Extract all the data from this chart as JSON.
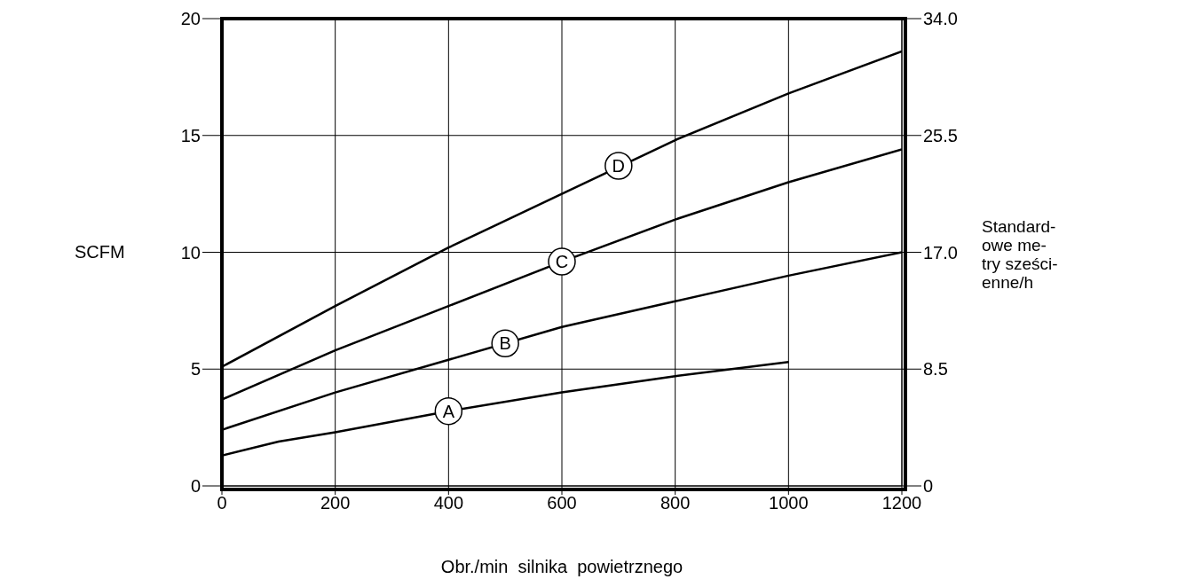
{
  "chart_data": {
    "type": "line",
    "xlabel": "Obr./min  silnika  powietrznego",
    "ylabel": "SCFM",
    "y2label": "Standard-\nowe me-\ntry sześci-\nenne/h",
    "x": [
      0,
      200,
      400,
      600,
      800,
      1000,
      1200
    ],
    "series": [
      {
        "color": "#000000",
        "x": [
          0,
          100,
          200,
          400,
          600,
          800,
          1000
        ],
        "values": [
          1.3,
          1.9,
          2.3,
          3.2,
          4.0,
          4.7,
          5.3
        ]
      },
      {
        "color": "#000000",
        "values": [
          2.4,
          4.0,
          5.4,
          6.8,
          7.9,
          9.0,
          10.0
        ]
      },
      {
        "color": "#000000",
        "values": [
          3.7,
          5.8,
          7.7,
          9.6,
          11.4,
          13.0,
          14.4
        ]
      },
      {
        "color": "#000000",
        "values": [
          5.1,
          7.7,
          10.2,
          12.5,
          14.8,
          16.8,
          18.6
        ]
      }
    ],
    "annotations": [
      {
        "text": "A",
        "x": 400,
        "y": 3.2
      },
      {
        "text": "B",
        "x": 500,
        "y": 6.1
      },
      {
        "text": "C",
        "x": 600,
        "y": 9.6
      },
      {
        "text": "D",
        "x": 700,
        "y": 13.7
      }
    ],
    "xlim": [
      0,
      1200
    ],
    "xticks": [
      0,
      200,
      400,
      600,
      800,
      1000,
      1200
    ],
    "ylim": [
      0,
      20
    ],
    "yticks": [
      0,
      5,
      10,
      15,
      20
    ],
    "y2lim": [
      0,
      34
    ],
    "y2ticks": [
      0,
      8.5,
      {
        "value": 17,
        "label": "17.0"
      },
      25.5,
      {
        "value": 34,
        "label": "34.0"
      }
    ],
    "grid": true,
    "line_style": "solid",
    "marker": "none",
    "legend": false
  }
}
